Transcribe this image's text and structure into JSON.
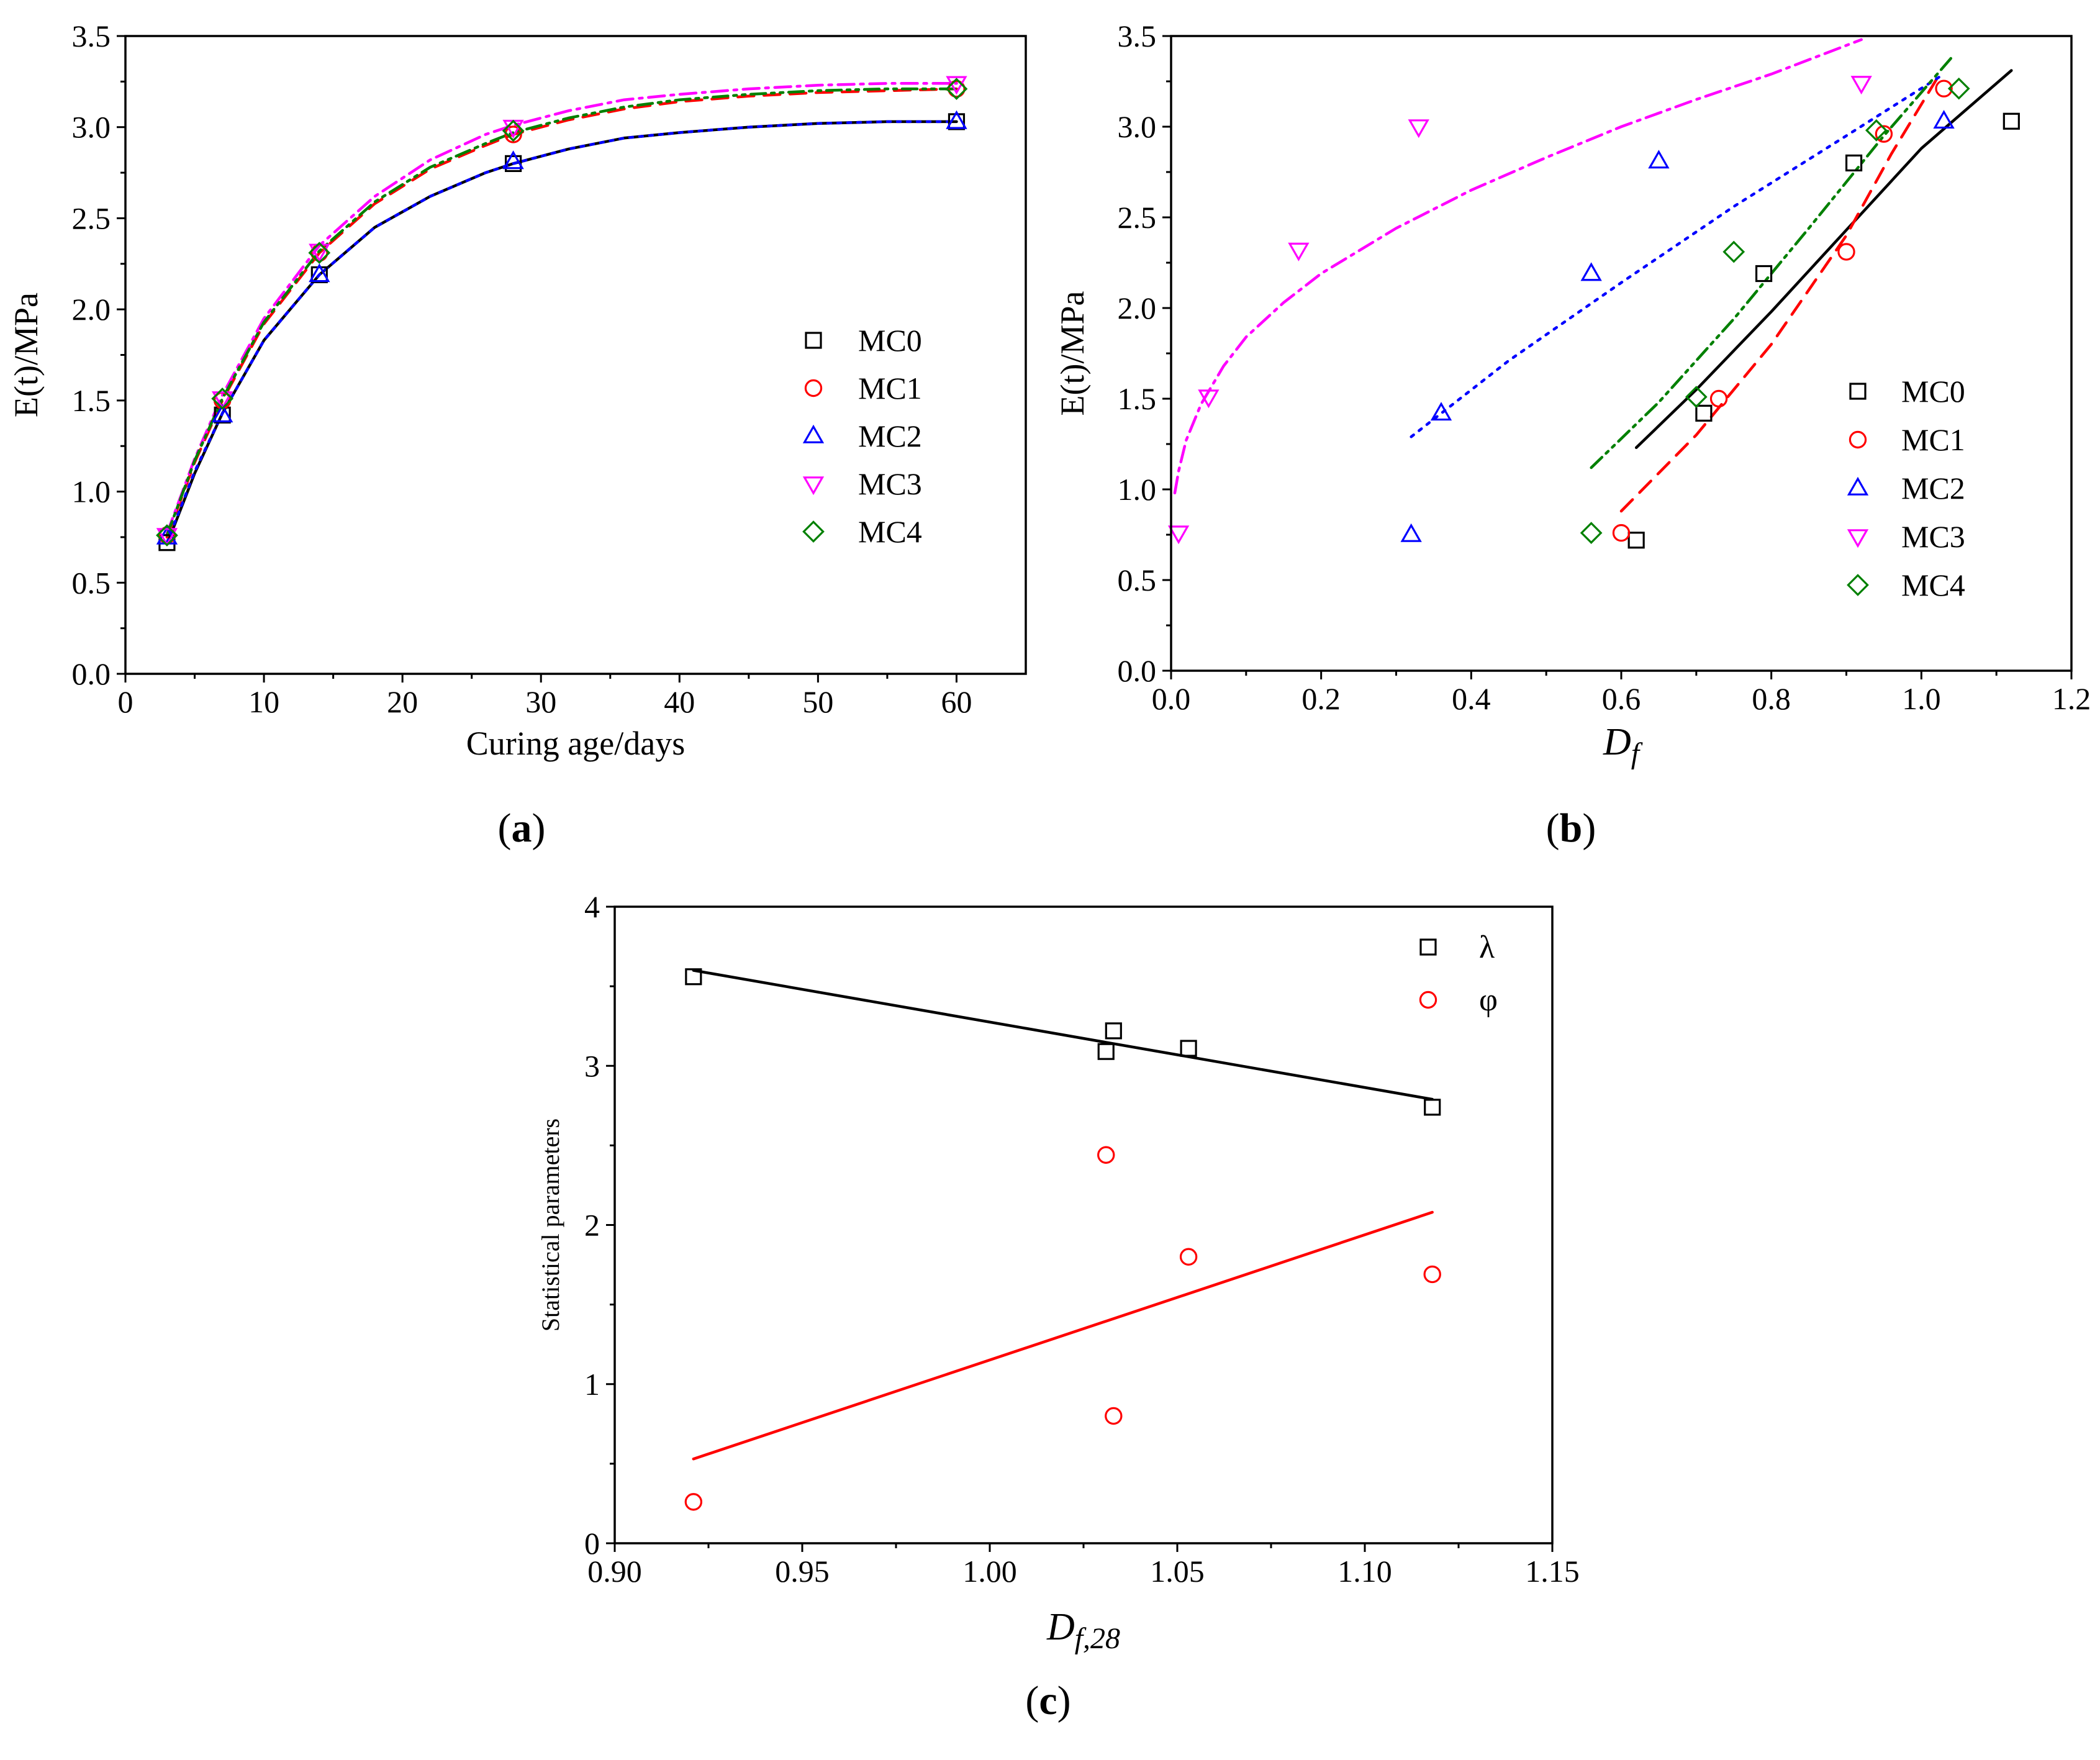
{
  "chart_data": [
    {
      "id": "a",
      "type": "scatter",
      "panel_label": "a",
      "title": "",
      "xlabel": "Curing age/days",
      "ylabel": "E(t)/MPa",
      "xlim": [
        0,
        65
      ],
      "ylim": [
        0,
        3.5
      ],
      "xticks": [
        0,
        10,
        20,
        30,
        40,
        50,
        60
      ],
      "yticks": [
        0,
        0.5,
        1.0,
        1.5,
        2.0,
        2.5,
        3.0,
        3.5
      ],
      "xtick_labels": [
        "0",
        "10",
        "20",
        "30",
        "40",
        "50",
        "60"
      ],
      "ytick_labels": [
        "0.0",
        "0.5",
        "1.0",
        "1.5",
        "2.0",
        "2.5",
        "3.0",
        "3.5"
      ],
      "legend_position": "right",
      "series": [
        {
          "name": "MC0",
          "marker": "square",
          "color": "#000000",
          "line": "solid",
          "x": [
            3,
            7,
            14,
            28,
            60
          ],
          "y": [
            0.72,
            1.42,
            2.19,
            2.8,
            3.03
          ],
          "fit_x": [
            3,
            5,
            7,
            10,
            14,
            18,
            22,
            26,
            28,
            32,
            36,
            40,
            45,
            50,
            55,
            60
          ],
          "fit_y": [
            0.71,
            1.1,
            1.43,
            1.83,
            2.19,
            2.45,
            2.62,
            2.75,
            2.8,
            2.88,
            2.94,
            2.97,
            3.0,
            3.02,
            3.03,
            3.03
          ]
        },
        {
          "name": "MC1",
          "marker": "circle",
          "color": "#ff0000",
          "line": "dashed",
          "x": [
            3,
            7,
            14,
            28,
            60
          ],
          "y": [
            0.76,
            1.5,
            2.31,
            2.96,
            3.21
          ],
          "fit_x": [
            3,
            5,
            7,
            10,
            14,
            18,
            22,
            26,
            28,
            32,
            36,
            40,
            45,
            50,
            55,
            60
          ],
          "fit_y": [
            0.75,
            1.16,
            1.5,
            1.92,
            2.31,
            2.58,
            2.77,
            2.9,
            2.96,
            3.04,
            3.1,
            3.14,
            3.17,
            3.19,
            3.2,
            3.21
          ]
        },
        {
          "name": "MC2",
          "marker": "triangle-up",
          "color": "#0000ff",
          "line": "dotted",
          "x": [
            3,
            7,
            14,
            28,
            60
          ],
          "y": [
            0.75,
            1.42,
            2.19,
            2.81,
            3.03
          ],
          "fit_x": [
            3,
            5,
            7,
            10,
            14,
            18,
            22,
            26,
            28,
            32,
            36,
            40,
            45,
            50,
            55,
            60
          ],
          "fit_y": [
            0.72,
            1.11,
            1.43,
            1.83,
            2.19,
            2.45,
            2.62,
            2.75,
            2.8,
            2.88,
            2.94,
            2.97,
            3.0,
            3.02,
            3.03,
            3.03
          ]
        },
        {
          "name": "MC3",
          "marker": "triangle-down",
          "color": "#ff00ff",
          "line": "dashdot",
          "x": [
            3,
            7,
            14,
            28,
            60
          ],
          "y": [
            0.76,
            1.51,
            2.32,
            3.0,
            3.24
          ],
          "fit_x": [
            3,
            5,
            7,
            10,
            14,
            18,
            22,
            26,
            28,
            32,
            36,
            40,
            45,
            50,
            55,
            60
          ],
          "fit_y": [
            0.77,
            1.18,
            1.53,
            1.95,
            2.35,
            2.62,
            2.82,
            2.96,
            3.01,
            3.09,
            3.15,
            3.18,
            3.21,
            3.23,
            3.24,
            3.24
          ]
        },
        {
          "name": "MC4",
          "marker": "diamond",
          "color": "#008000",
          "line": "dashdotdot",
          "x": [
            3,
            7,
            14,
            28,
            60
          ],
          "y": [
            0.76,
            1.51,
            2.31,
            2.98,
            3.21
          ],
          "fit_x": [
            3,
            5,
            7,
            10,
            14,
            18,
            22,
            26,
            28,
            32,
            36,
            40,
            45,
            50,
            55,
            60
          ],
          "fit_y": [
            0.76,
            1.17,
            1.51,
            1.93,
            2.32,
            2.59,
            2.78,
            2.91,
            2.97,
            3.05,
            3.11,
            3.15,
            3.18,
            3.2,
            3.21,
            3.21
          ]
        }
      ]
    },
    {
      "id": "b",
      "type": "scatter",
      "panel_label": "b",
      "title": "",
      "xlabel": "D",
      "xlabel_sub": "f",
      "ylabel": "E(t)/MPa",
      "xlim": [
        0,
        1.2
      ],
      "ylim": [
        0,
        3.5
      ],
      "xticks": [
        0,
        0.2,
        0.4,
        0.6,
        0.8,
        1.0,
        1.2
      ],
      "yticks": [
        0,
        0.5,
        1.0,
        1.5,
        2.0,
        2.5,
        3.0,
        3.5
      ],
      "xtick_labels": [
        "0.0",
        "0.2",
        "0.4",
        "0.6",
        "0.8",
        "1.0",
        "1.2"
      ],
      "ytick_labels": [
        "0.0",
        "0.5",
        "1.0",
        "1.5",
        "2.0",
        "2.5",
        "3.0",
        "3.5"
      ],
      "legend_position": "bottom-right",
      "series": [
        {
          "name": "MC0",
          "marker": "square",
          "color": "#000000",
          "line": "solid",
          "x": [
            0.62,
            0.71,
            0.79,
            0.91,
            1.12
          ],
          "y": [
            0.72,
            1.42,
            2.19,
            2.8,
            3.03
          ],
          "fit_x": [
            0.62,
            0.7,
            0.8,
            0.9,
            1.0,
            1.12
          ],
          "fit_y": [
            1.23,
            1.55,
            1.98,
            2.43,
            2.88,
            3.31
          ]
        },
        {
          "name": "MC1",
          "marker": "circle",
          "color": "#ff0000",
          "line": "dashed",
          "x": [
            0.6,
            0.73,
            0.9,
            0.95,
            1.03
          ],
          "y": [
            0.76,
            1.5,
            2.31,
            2.96,
            3.21
          ],
          "fit_x": [
            0.6,
            0.7,
            0.8,
            0.9,
            0.96,
            1.02
          ],
          "fit_y": [
            0.88,
            1.3,
            1.8,
            2.4,
            2.85,
            3.26
          ]
        },
        {
          "name": "MC2",
          "marker": "triangle-up",
          "color": "#0000ff",
          "line": "dotted",
          "x": [
            0.32,
            0.36,
            0.56,
            0.65,
            1.03
          ],
          "y": [
            0.75,
            1.42,
            2.19,
            2.81,
            3.03
          ],
          "fit_x": [
            0.32,
            0.45,
            0.6,
            0.75,
            0.9,
            1.03
          ],
          "fit_y": [
            1.29,
            1.71,
            2.14,
            2.56,
            2.95,
            3.29
          ]
        },
        {
          "name": "MC3",
          "marker": "triangle-down",
          "color": "#ff00ff",
          "line": "dashdot",
          "x": [
            0.01,
            0.05,
            0.17,
            0.33,
            0.92
          ],
          "y": [
            0.76,
            1.51,
            2.32,
            3.0,
            3.24
          ],
          "fit_x": [
            0.005,
            0.01,
            0.02,
            0.04,
            0.07,
            0.1,
            0.15,
            0.2,
            0.3,
            0.4,
            0.5,
            0.6,
            0.7,
            0.8,
            0.92
          ],
          "fit_y": [
            0.98,
            1.1,
            1.27,
            1.47,
            1.68,
            1.84,
            2.03,
            2.19,
            2.44,
            2.65,
            2.83,
            3.0,
            3.15,
            3.29,
            3.48
          ]
        },
        {
          "name": "MC4",
          "marker": "diamond",
          "color": "#008000",
          "line": "dashdotdot",
          "x": [
            0.56,
            0.7,
            0.75,
            0.94,
            1.05
          ],
          "y": [
            0.76,
            1.51,
            2.31,
            2.98,
            3.21
          ],
          "fit_x": [
            0.56,
            0.65,
            0.75,
            0.85,
            0.95,
            1.04
          ],
          "fit_y": [
            1.12,
            1.48,
            1.94,
            2.44,
            2.95,
            3.38
          ]
        }
      ]
    },
    {
      "id": "c",
      "type": "scatter",
      "panel_label": "c",
      "title": "",
      "xlabel": "D",
      "xlabel_sub": "f,28",
      "ylabel": "Statistical parameters",
      "xlim": [
        0.9,
        1.15
      ],
      "ylim": [
        0,
        4
      ],
      "xticks": [
        0.9,
        0.95,
        1.0,
        1.05,
        1.1,
        1.15
      ],
      "yticks": [
        0,
        1,
        2,
        3,
        4
      ],
      "xtick_labels": [
        "0.90",
        "0.95",
        "1.00",
        "1.05",
        "1.10",
        "1.15"
      ],
      "ytick_labels": [
        "0",
        "1",
        "2",
        "3",
        "4"
      ],
      "legend_position": "top-right",
      "series": [
        {
          "name": "λ",
          "marker": "square",
          "color": "#000000",
          "line": "solid",
          "x": [
            0.921,
            1.031,
            1.033,
            1.053,
            1.118
          ],
          "y": [
            3.56,
            3.09,
            3.22,
            3.11,
            2.74
          ],
          "fit_x": [
            0.921,
            1.118
          ],
          "fit_y": [
            3.6,
            2.79
          ]
        },
        {
          "name": "φ",
          "marker": "circle",
          "color": "#ff0000",
          "line": "solid",
          "x": [
            0.921,
            1.031,
            1.033,
            1.053,
            1.118
          ],
          "y": [
            0.26,
            2.44,
            0.8,
            1.8,
            1.69
          ],
          "fit_x": [
            0.921,
            1.118
          ],
          "fit_y": [
            0.53,
            2.08
          ]
        }
      ]
    }
  ]
}
